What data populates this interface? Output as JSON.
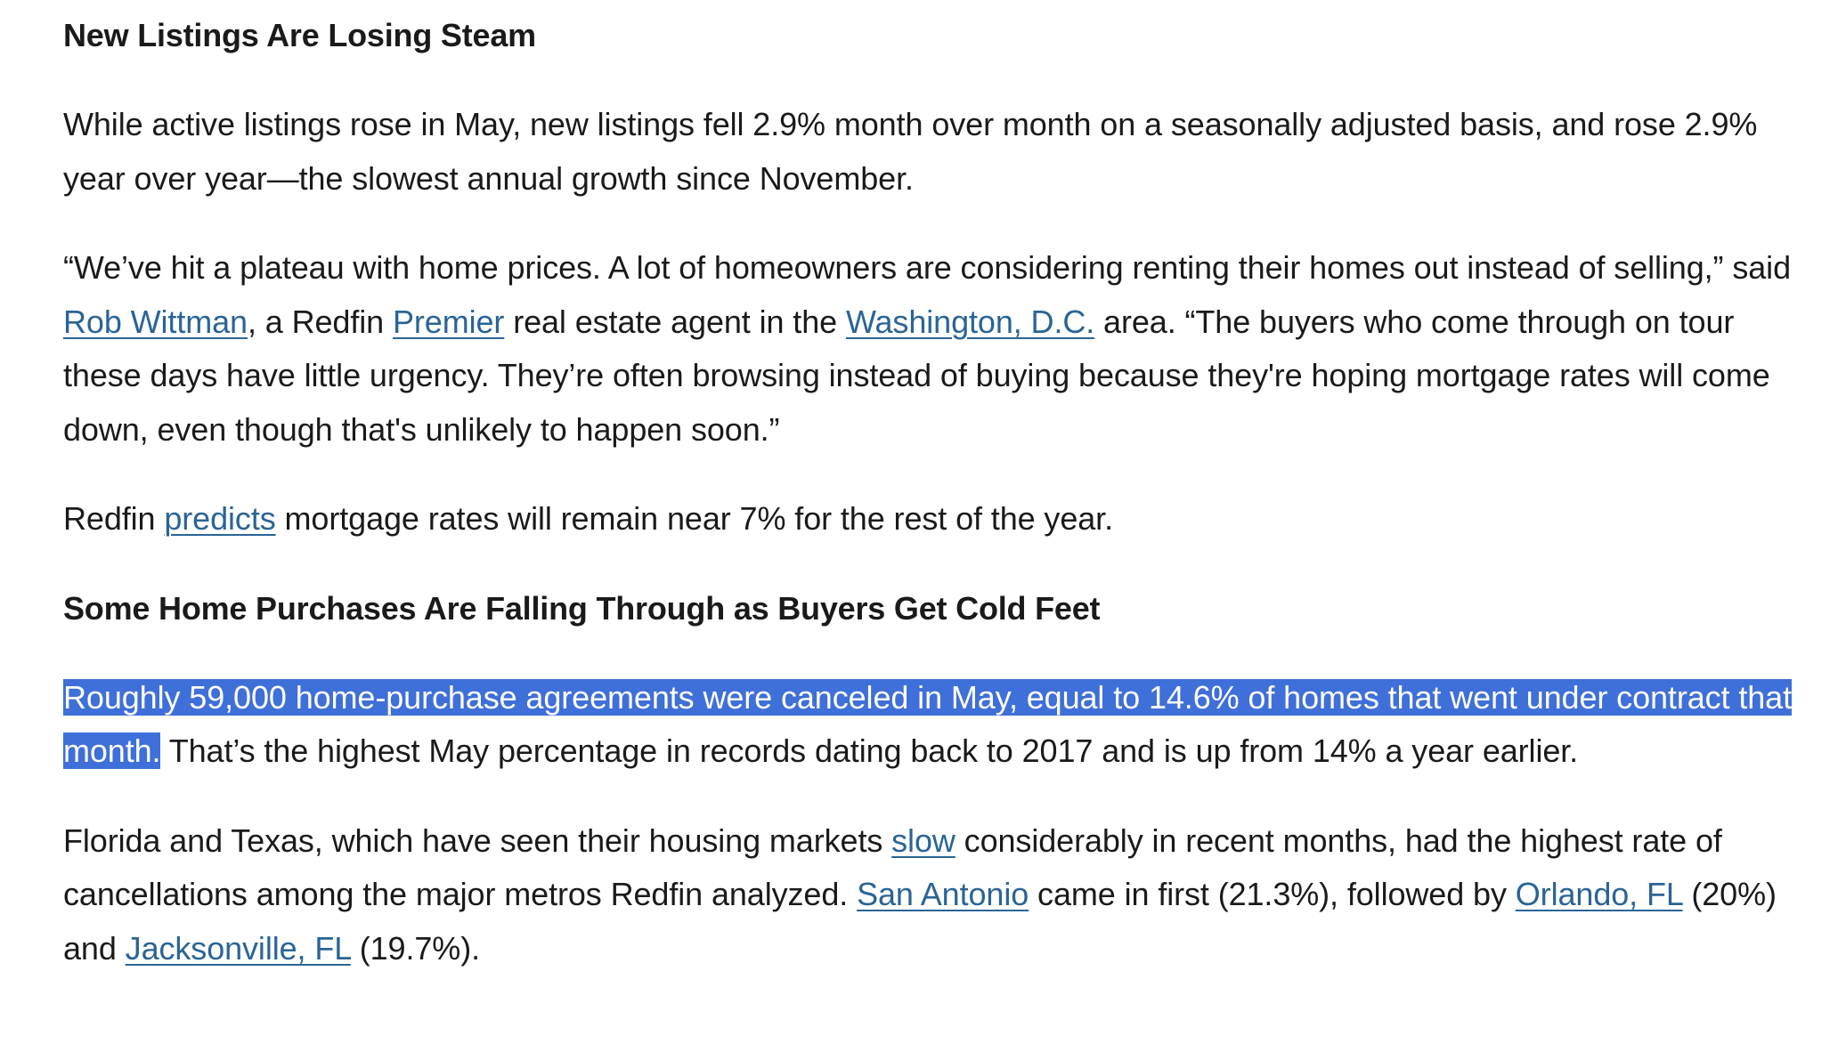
{
  "article": {
    "heading_1": "New Listings Are Losing Steam",
    "para_1": "While active listings rose in May, new listings fell 2.9% month over month on a seasonally adjusted basis, and rose 2.9% year over year—the slowest annual growth since November.",
    "para_2": {
      "t1": "“We’ve hit a plateau with home prices. A lot of homeowners are considering renting their homes out instead of selling,” said ",
      "link_rob": "Rob Wittman",
      "t2": ", a Redfin ",
      "link_premier": "Premier",
      "t3": " real estate agent in the ",
      "link_dc": "Washington, D.C.",
      "t4": " area. “The buyers who come through on tour these days have little urgency. They’re often browsing instead of buying because they're hoping mortgage rates will come down, even though that's unlikely to happen soon.”"
    },
    "para_3": {
      "t1": "Redfin ",
      "link_predicts": "predicts",
      "t2": " mortgage rates will remain near 7% for the rest of the year."
    },
    "heading_2": "Some Home Purchases Are Falling Through as Buyers Get Cold Feet",
    "para_4": {
      "highlighted": "Roughly 59,000 home-purchase agreements were canceled in May, equal to 14.6% of homes that went under contract that month.",
      "t1": " That’s the highest May percentage in records dating back to 2017 and is up from 14% a year earlier."
    },
    "para_5": {
      "t1": "Florida and Texas, which have seen their housing markets ",
      "link_slow": "slow",
      "t2": " considerably in recent months, had the highest rate of cancellations among the major metros Redfin analyzed. ",
      "link_san_antonio": "San Antonio",
      "t3": " came in first (21.3%), followed by ",
      "link_orlando": "Orlando, FL",
      "t4": " (20%) and ",
      "link_jacksonville": "Jacksonville, FL",
      "t5": " (19.7%)."
    }
  },
  "colors": {
    "link": "#2a6496",
    "selection_highlight": "#3f6fd8",
    "text": "#1a1a1a"
  }
}
